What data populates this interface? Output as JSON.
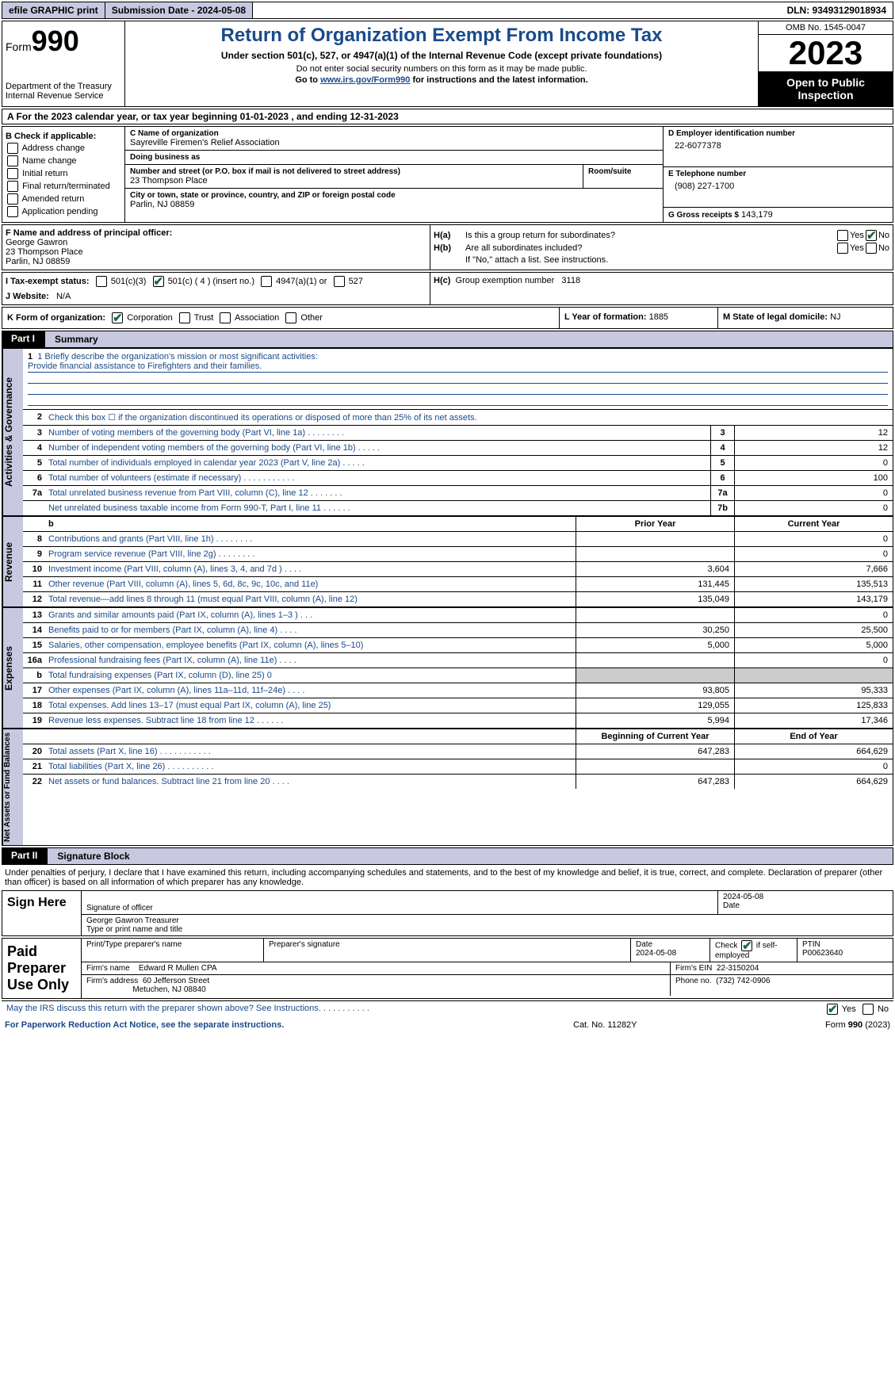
{
  "topbar": {
    "efile": "efile GRAPHIC print",
    "submission": "Submission Date - 2024-05-08",
    "dln": "DLN: 93493129018934"
  },
  "header": {
    "form_prefix": "Form",
    "form_no": "990",
    "dept": "Department of the Treasury Internal Revenue Service",
    "title": "Return of Organization Exempt From Income Tax",
    "sub": "Under section 501(c), 527, or 4947(a)(1) of the Internal Revenue Code (except private foundations)",
    "note1": "Do not enter social security numbers on this form as it may be made public.",
    "note2_pre": "Go to ",
    "note2_link": "www.irs.gov/Form990",
    "note2_post": " for instructions and the latest information.",
    "omb": "OMB No. 1545-0047",
    "year": "2023",
    "open_pub": "Open to Public Inspection"
  },
  "row_a": "A For the 2023 calendar year, or tax year beginning 01-01-2023    , and ending 12-31-2023",
  "col_b": {
    "hdr": "B Check if applicable:",
    "items": [
      "Address change",
      "Name change",
      "Initial return",
      "Final return/terminated",
      "Amended return",
      "Application pending"
    ]
  },
  "col_c": {
    "name_label": "C Name of organization",
    "name": "Sayreville Firemen's Relief Association",
    "dba_label": "Doing business as",
    "dba": "",
    "addr_label": "Number and street (or P.O. box if mail is not delivered to street address)",
    "addr": "23 Thompson Place",
    "room_label": "Room/suite",
    "city_label": "City or town, state or province, country, and ZIP or foreign postal code",
    "city": "Parlin, NJ  08859"
  },
  "col_d": {
    "ein_label": "D Employer identification number",
    "ein": "22-6077378",
    "tel_label": "E Telephone number",
    "tel": "(908) 227-1700",
    "gross_label": "G Gross receipts $",
    "gross": "143,179"
  },
  "col_f": {
    "label": "F  Name and address of principal officer:",
    "name": "George Gawron",
    "addr1": "23 Thompson Place",
    "addr2": "Parlin, NJ  08859"
  },
  "col_h": {
    "ha_lab": "H(a)",
    "ha_txt": "Is this a group return for subordinates?",
    "hb_lab": "H(b)",
    "hb_txt": "Are all subordinates included?",
    "hb_note": "If \"No,\" attach a list. See instructions.",
    "hc_lab": "H(c)",
    "hc_txt": "Group exemption number",
    "hc_val": "3118",
    "yes": "Yes",
    "no": "No"
  },
  "tax_exempt": {
    "label": "I   Tax-exempt status:",
    "opts": [
      "501(c)(3)",
      "501(c) ( 4 ) (insert no.)",
      "4947(a)(1) or",
      "527"
    ]
  },
  "website": {
    "label": "J   Website:",
    "val": "N/A"
  },
  "row_k": {
    "label": "K Form of organization:",
    "opts": [
      "Corporation",
      "Trust",
      "Association",
      "Other"
    ]
  },
  "row_l": {
    "label": "L Year of formation:",
    "val": "1885"
  },
  "row_m": {
    "label": "M State of legal domicile:",
    "val": "NJ"
  },
  "part1": {
    "tag": "Part I",
    "title": "Summary"
  },
  "mission": {
    "label": "1   Briefly describe the organization's mission or most significant activities:",
    "text": "Provide financial assistance to Firefighters and their families."
  },
  "gov_rows": [
    {
      "n": "2",
      "d": "Check this box ☐  if the organization discontinued its operations or disposed of more than 25% of its net assets."
    },
    {
      "n": "3",
      "d": "Number of voting members of the governing body (Part VI, line 1a)  .   .   .   .   .   .   .   .",
      "c": "3",
      "v": "12"
    },
    {
      "n": "4",
      "d": "Number of independent voting members of the governing body (Part VI, line 1b)   .   .   .   .   .",
      "c": "4",
      "v": "12"
    },
    {
      "n": "5",
      "d": "Total number of individuals employed in calendar year 2023 (Part V, line 2a)   .   .   .   .   .",
      "c": "5",
      "v": "0"
    },
    {
      "n": "6",
      "d": "Total number of volunteers (estimate if necessary)   .   .   .   .   .   .   .   .   .   .   .",
      "c": "6",
      "v": "100"
    },
    {
      "n": "7a",
      "d": "Total unrelated business revenue from Part VIII, column (C), line 12  .   .   .   .   .   .   .",
      "c": "7a",
      "v": "0"
    },
    {
      "n": "",
      "d": "Net unrelated business taxable income from Form 990-T, Part I, line 11   .   .   .   .   .   .",
      "c": "7b",
      "v": "0"
    }
  ],
  "rev_hdr": {
    "py": "Prior Year",
    "cy": "Current Year"
  },
  "rev_rows": [
    {
      "n": "8",
      "d": "Contributions and grants (Part VIII, line 1h)   .   .   .   .   .   .   .   .",
      "py": "",
      "cy": "0"
    },
    {
      "n": "9",
      "d": "Program service revenue (Part VIII, line 2g)   .   .   .   .   .   .   .   .",
      "py": "",
      "cy": "0"
    },
    {
      "n": "10",
      "d": "Investment income (Part VIII, column (A), lines 3, 4, and 7d )   .   .   .   .",
      "py": "3,604",
      "cy": "7,666"
    },
    {
      "n": "11",
      "d": "Other revenue (Part VIII, column (A), lines 5, 6d, 8c, 9c, 10c, and 11e)",
      "py": "131,445",
      "cy": "135,513"
    },
    {
      "n": "12",
      "d": "Total revenue—add lines 8 through 11 (must equal Part VIII, column (A), line 12)",
      "py": "135,049",
      "cy": "143,179"
    }
  ],
  "exp_rows": [
    {
      "n": "13",
      "d": "Grants and similar amounts paid (Part IX, column (A), lines 1–3 )   .   .   .",
      "py": "",
      "cy": "0"
    },
    {
      "n": "14",
      "d": "Benefits paid to or for members (Part IX, column (A), line 4)   .   .   .   .",
      "py": "30,250",
      "cy": "25,500"
    },
    {
      "n": "15",
      "d": "Salaries, other compensation, employee benefits (Part IX, column (A), lines 5–10)",
      "py": "5,000",
      "cy": "5,000"
    },
    {
      "n": "16a",
      "d": "Professional fundraising fees (Part IX, column (A), line 11e)   .   .   .   .",
      "py": "",
      "cy": "0"
    },
    {
      "n": "b",
      "d": "Total fundraising expenses (Part IX, column (D), line 25) 0",
      "py": "grey",
      "cy": "grey"
    },
    {
      "n": "17",
      "d": "Other expenses (Part IX, column (A), lines 11a–11d, 11f–24e)   .   .   .   .",
      "py": "93,805",
      "cy": "95,333"
    },
    {
      "n": "18",
      "d": "Total expenses. Add lines 13–17 (must equal Part IX, column (A), line 25)",
      "py": "129,055",
      "cy": "125,833"
    },
    {
      "n": "19",
      "d": "Revenue less expenses. Subtract line 18 from line 12  .   .   .   .   .   .",
      "py": "5,994",
      "cy": "17,346"
    }
  ],
  "na_hdr": {
    "py": "Beginning of Current Year",
    "cy": "End of Year"
  },
  "na_rows": [
    {
      "n": "20",
      "d": "Total assets (Part X, line 16)   .   .   .   .   .   .   .   .   .   .   .",
      "py": "647,283",
      "cy": "664,629"
    },
    {
      "n": "21",
      "d": "Total liabilities (Part X, line 26)   .   .   .   .   .   .   .   .   .   .",
      "py": "",
      "cy": "0"
    },
    {
      "n": "22",
      "d": "Net assets or fund balances. Subtract line 21 from line 20   .   .   .   .",
      "py": "647,283",
      "cy": "664,629"
    }
  ],
  "vtabs": {
    "gov": "Activities & Governance",
    "rev": "Revenue",
    "exp": "Expenses",
    "na": "Net Assets or Fund Balances"
  },
  "part2": {
    "tag": "Part II",
    "title": "Signature Block"
  },
  "sig_decl": "Under penalties of perjury, I declare that I have examined this return, including accompanying schedules and statements, and to the best of my knowledge and belief, it is true, correct, and complete. Declaration of preparer (other than officer) is based on all information of which preparer has any knowledge.",
  "sign_here": {
    "label": "Sign Here",
    "sig_of": "Signature of officer",
    "date_lab": "Date",
    "date": "2024-05-08",
    "name": "George Gawron Treasurer",
    "type_lab": "Type or print name and title"
  },
  "paid_prep": {
    "label": "Paid Preparer Use Only",
    "pt_name_lab": "Print/Type preparer's name",
    "pt_sig_lab": "Preparer's signature",
    "pt_date_lab": "Date",
    "pt_date": "2024-05-08",
    "chk_lab": "Check",
    "self_emp": "if self-employed",
    "ptin_lab": "PTIN",
    "ptin": "P00623640",
    "firm_name_lab": "Firm's name",
    "firm_name": "Edward R Mullen CPA",
    "firm_ein_lab": "Firm's EIN",
    "firm_ein": "22-3150204",
    "firm_addr_lab": "Firm's address",
    "firm_addr1": "60 Jefferson Street",
    "firm_addr2": "Metuchen, NJ  08840",
    "phone_lab": "Phone no.",
    "phone": "(732) 742-0906"
  },
  "may_discuss": "May the IRS discuss this return with the preparer shown above? See Instructions.   .   .   .   .   .   .   .   .   .   .",
  "footer": {
    "f1": "For Paperwork Reduction Act Notice, see the separate instructions.",
    "f2": "Cat. No. 11282Y",
    "f3_pre": "Form ",
    "f3_b": "990",
    "f3_post": " (2023)"
  },
  "colors": {
    "header_blue": "#1a4a8a",
    "tab_bg": "#c8c8e0",
    "check_green": "#1a6a3a"
  }
}
